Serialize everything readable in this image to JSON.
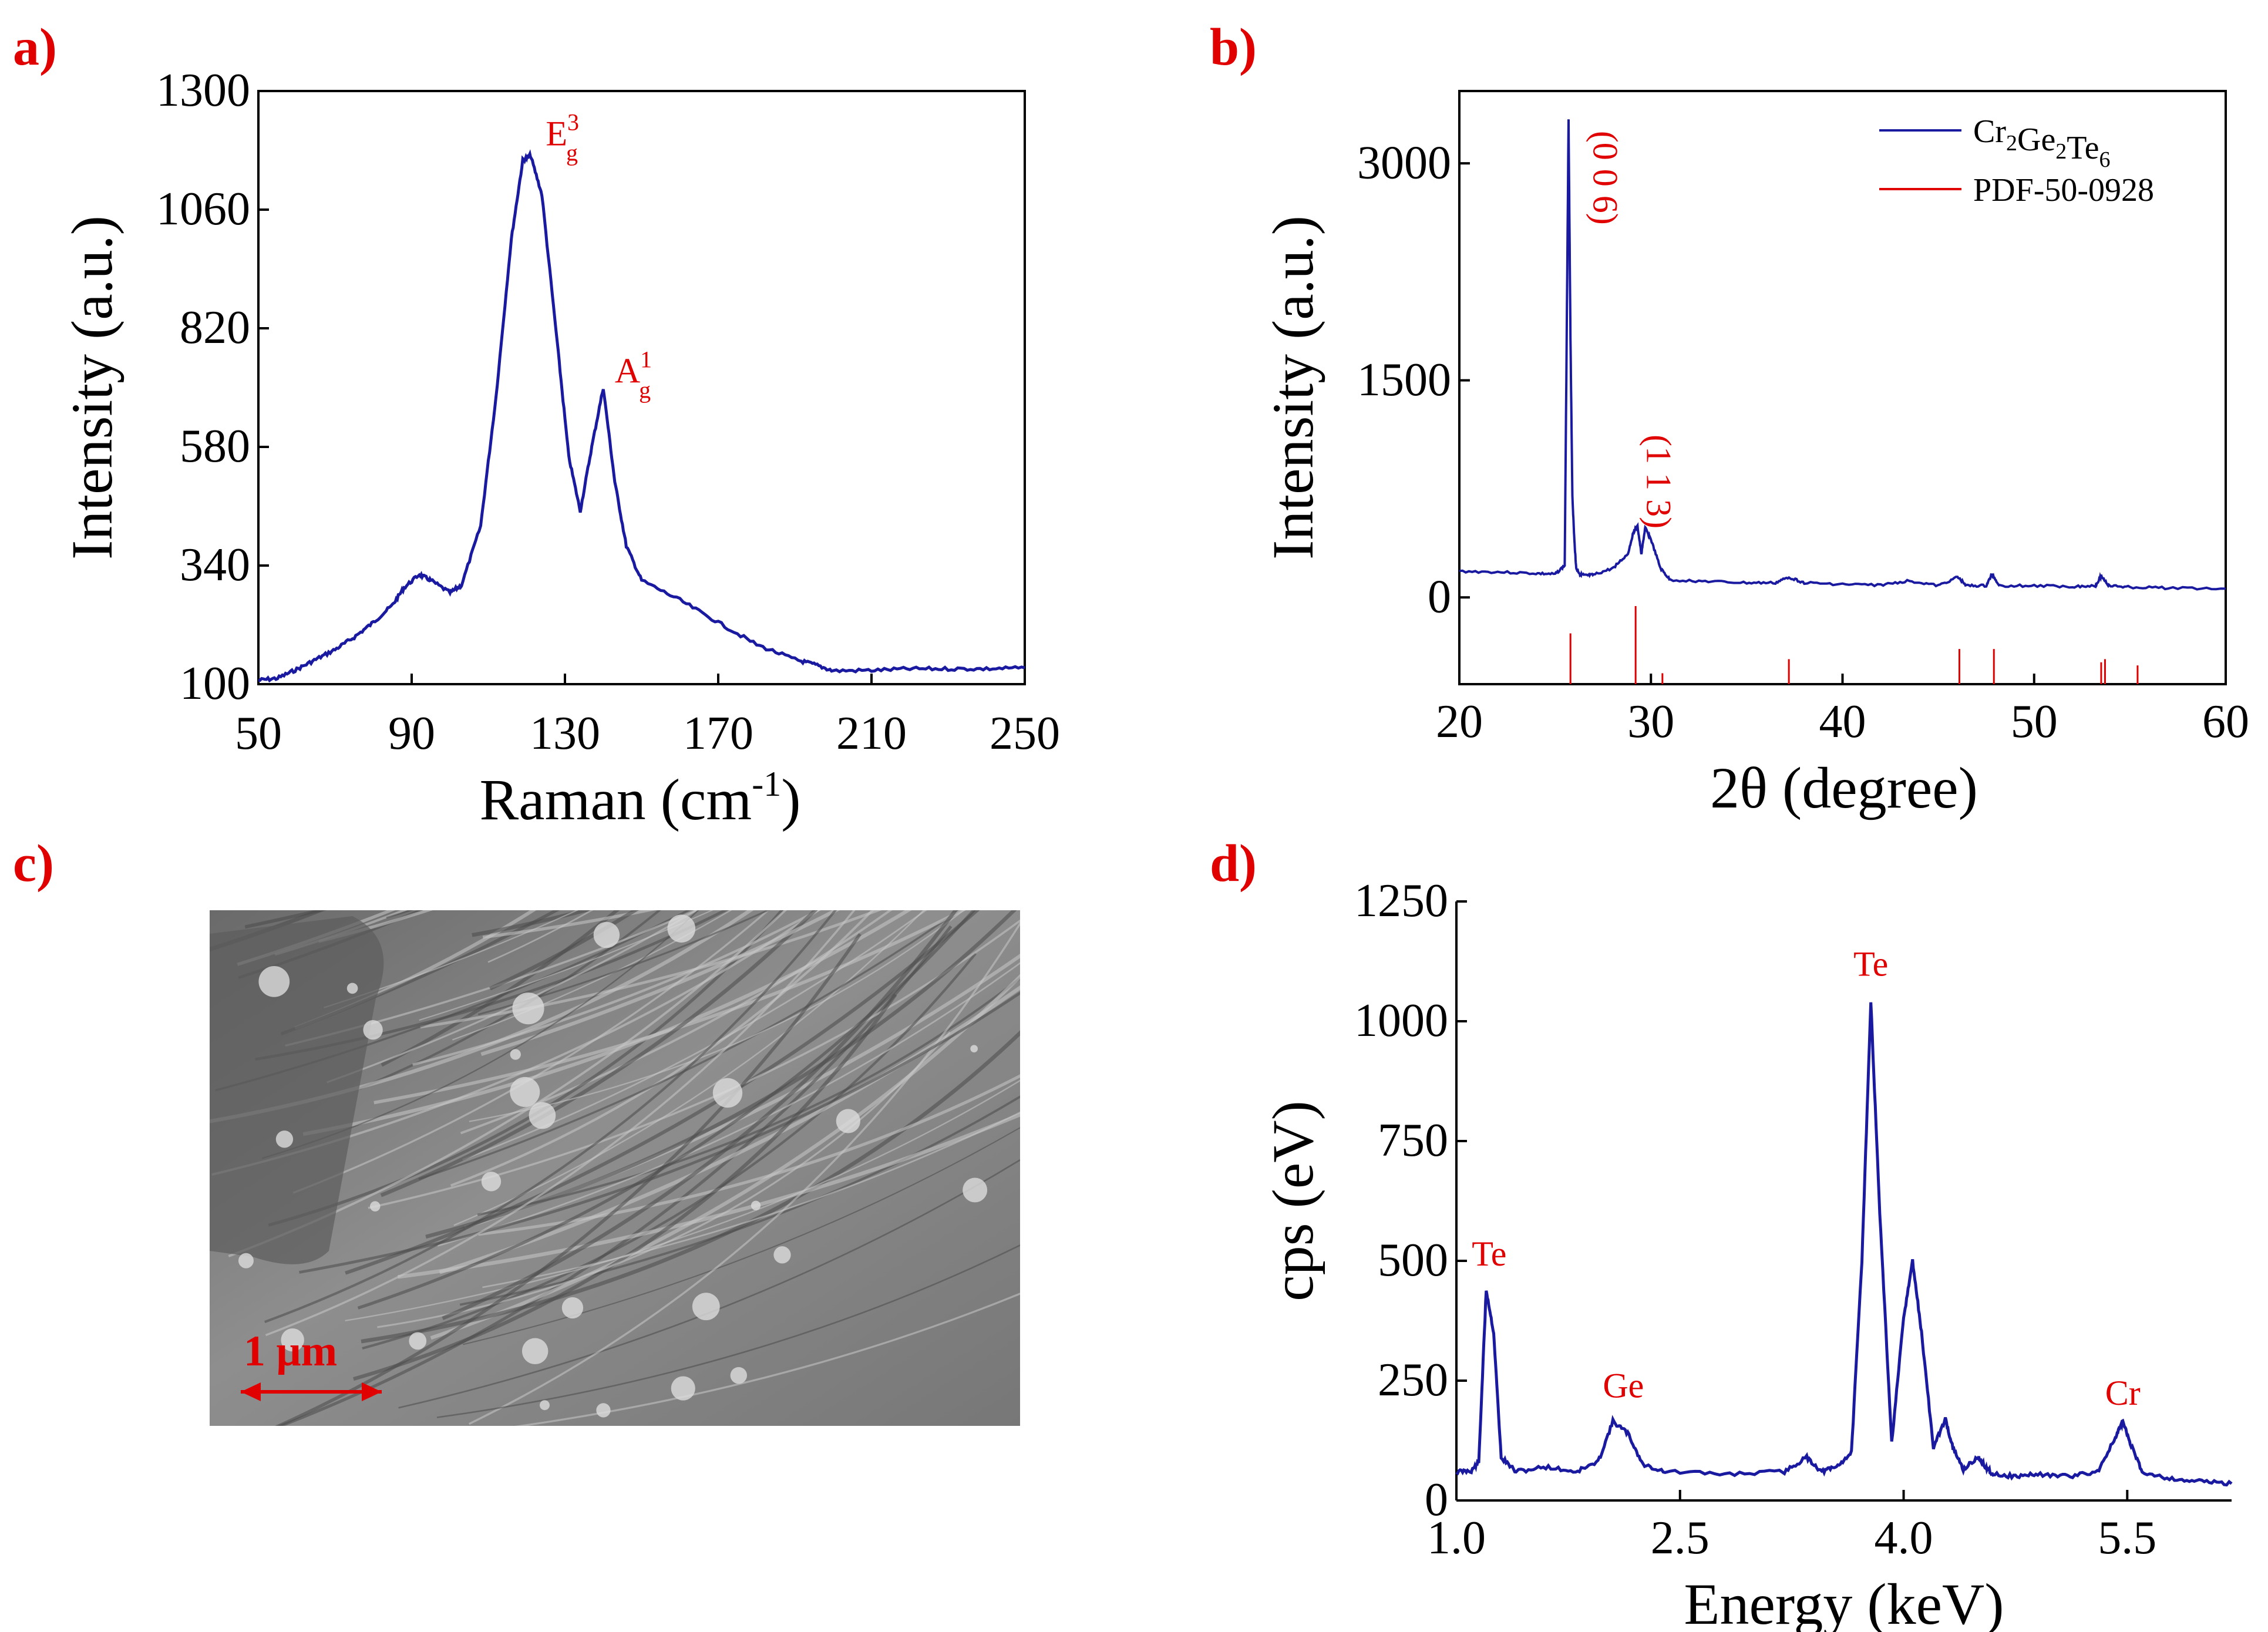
{
  "colors": {
    "series": "#1a1aa0",
    "reference": "#e00000",
    "panel_label": "#e00000",
    "scale_bar": "#e00000"
  },
  "panels": {
    "a": "a)",
    "b": "b)",
    "c": "c)",
    "d": "d)"
  },
  "chart_data": [
    {
      "panel": "a",
      "type": "line",
      "xlabel": "Raman (cm",
      "xlabel_sup": "-1",
      "xlabel_close": ")",
      "ylabel": "Intensity (a.u.)",
      "xlim": [
        50,
        250
      ],
      "ylim": [
        100,
        1300
      ],
      "xticks": [
        50,
        90,
        130,
        170,
        210,
        250
      ],
      "yticks": [
        100,
        340,
        580,
        820,
        1060,
        1300
      ],
      "grid": false,
      "series": [
        {
          "x": [
            50,
            55,
            60,
            65,
            70,
            75,
            80,
            85,
            88,
            92,
            95,
            100,
            103,
            108,
            112,
            116,
            119,
            121,
            124,
            128,
            131,
            134,
            137,
            140,
            143,
            146,
            150,
            160,
            170,
            180,
            190,
            195,
            200,
            210,
            220,
            230,
            240,
            250
          ],
          "y": [
            108,
            112,
            130,
            150,
            170,
            195,
            225,
            260,
            295,
            322,
            310,
            285,
            300,
            420,
            680,
            1000,
            1160,
            1170,
            1090,
            790,
            560,
            450,
            580,
            700,
            510,
            380,
            310,
            270,
            225,
            180,
            150,
            140,
            127,
            128,
            131,
            131,
            131,
            133
          ]
        }
      ],
      "annotations": [
        {
          "base": "E",
          "sub": "g",
          "sup": "3",
          "x": 125,
          "y": 1190
        },
        {
          "base": "A",
          "sub": "g",
          "sup": "1",
          "x": 143,
          "y": 710
        }
      ]
    },
    {
      "panel": "b",
      "type": "line",
      "xlabel": "2θ (degree)",
      "ylabel": "Intensity (a.u.)",
      "xlim": [
        20,
        60
      ],
      "ylim": [
        -600,
        3500
      ],
      "xticks": [
        20,
        30,
        40,
        50,
        60
      ],
      "yticks": [
        0,
        1500,
        3000
      ],
      "grid": false,
      "series": [
        {
          "name_base": "Cr",
          "name_parts": [
            {
              "t": "Cr",
              "sub": "2"
            },
            {
              "t": "Ge",
              "sub": "2"
            },
            {
              "t": "Te",
              "sub": "6"
            }
          ],
          "x": [
            20,
            22,
            24,
            25,
            25.5,
            25.7,
            25.8,
            25.9,
            26.0,
            26.1,
            26.3,
            26.6,
            27,
            28,
            28.8,
            29.1,
            29.3,
            29.5,
            29.7,
            30.0,
            30.5,
            31,
            33,
            35,
            36.5,
            37.2,
            38,
            40,
            42,
            43.5,
            45,
            46,
            46.5,
            47.5,
            47.8,
            48.2,
            50,
            52,
            53.2,
            53.5,
            53.9,
            55,
            57,
            60
          ],
          "y": [
            180,
            175,
            165,
            160,
            220,
            3300,
            1800,
            700,
            400,
            200,
            160,
            150,
            155,
            200,
            300,
            460,
            490,
            300,
            480,
            400,
            200,
            120,
            110,
            100,
            100,
            140,
            100,
            90,
            85,
            115,
            80,
            140,
            80,
            80,
            160,
            80,
            80,
            75,
            80,
            150,
            80,
            70,
            65,
            60
          ]
        }
      ],
      "reference": {
        "name": "PDF-50-0928",
        "peaks": [
          {
            "x": 25.8,
            "h": 0.65
          },
          {
            "x": 29.2,
            "h": 1.0
          },
          {
            "x": 30.6,
            "h": 0.14
          },
          {
            "x": 37.2,
            "h": 0.32
          },
          {
            "x": 46.1,
            "h": 0.45
          },
          {
            "x": 47.9,
            "h": 0.45
          },
          {
            "x": 53.5,
            "h": 0.28
          },
          {
            "x": 53.7,
            "h": 0.32
          },
          {
            "x": 55.4,
            "h": 0.24
          }
        ]
      },
      "annotations": [
        {
          "text": "(0 0 6)",
          "x": 27.0,
          "y": 2900
        },
        {
          "text": "(1 1 3)",
          "x": 29.8,
          "y": 800
        }
      ],
      "legend_position": "top-right"
    },
    {
      "panel": "d",
      "type": "line",
      "xlabel": "Energy (keV)",
      "ylabel": "cps (eV)",
      "xlim": [
        1.0,
        6.2
      ],
      "ylim": [
        0,
        1250
      ],
      "xticks": [
        1.0,
        2.5,
        4.0,
        5.5
      ],
      "xtick_labels": [
        "1.0",
        "2.5",
        "4.0",
        "5.5"
      ],
      "yticks": [
        0,
        250,
        500,
        750,
        1000,
        1250
      ],
      "grid": false,
      "series": [
        {
          "x": [
            1.0,
            1.1,
            1.15,
            1.2,
            1.25,
            1.3,
            1.4,
            1.6,
            1.8,
            1.95,
            2.05,
            2.15,
            2.25,
            2.4,
            2.8,
            3.2,
            3.35,
            3.45,
            3.55,
            3.65,
            3.72,
            3.78,
            3.84,
            3.92,
            4.0,
            4.06,
            4.12,
            4.2,
            4.28,
            4.33,
            4.4,
            4.5,
            4.55,
            4.6,
            4.75,
            4.9,
            5.1,
            5.3,
            5.42,
            5.47,
            5.52,
            5.6,
            5.8,
            6.0,
            6.2
          ],
          "y": [
            60,
            62,
            80,
            440,
            350,
            90,
            60,
            70,
            60,
            80,
            165,
            140,
            75,
            60,
            55,
            60,
            90,
            60,
            70,
            100,
            500,
            1040,
            600,
            120,
            380,
            500,
            350,
            110,
            170,
            110,
            65,
            90,
            70,
            55,
            50,
            55,
            50,
            60,
            130,
            165,
            120,
            60,
            45,
            40,
            35
          ]
        }
      ],
      "annotations": [
        {
          "text": "Te",
          "x": 1.22,
          "y": 490
        },
        {
          "text": "Ge",
          "x": 2.12,
          "y": 215
        },
        {
          "text": "Te",
          "x": 3.78,
          "y": 1095
        },
        {
          "text": "Cr",
          "x": 5.47,
          "y": 200
        }
      ]
    }
  ],
  "micrograph": {
    "scale_bar_label": "1 μm"
  }
}
